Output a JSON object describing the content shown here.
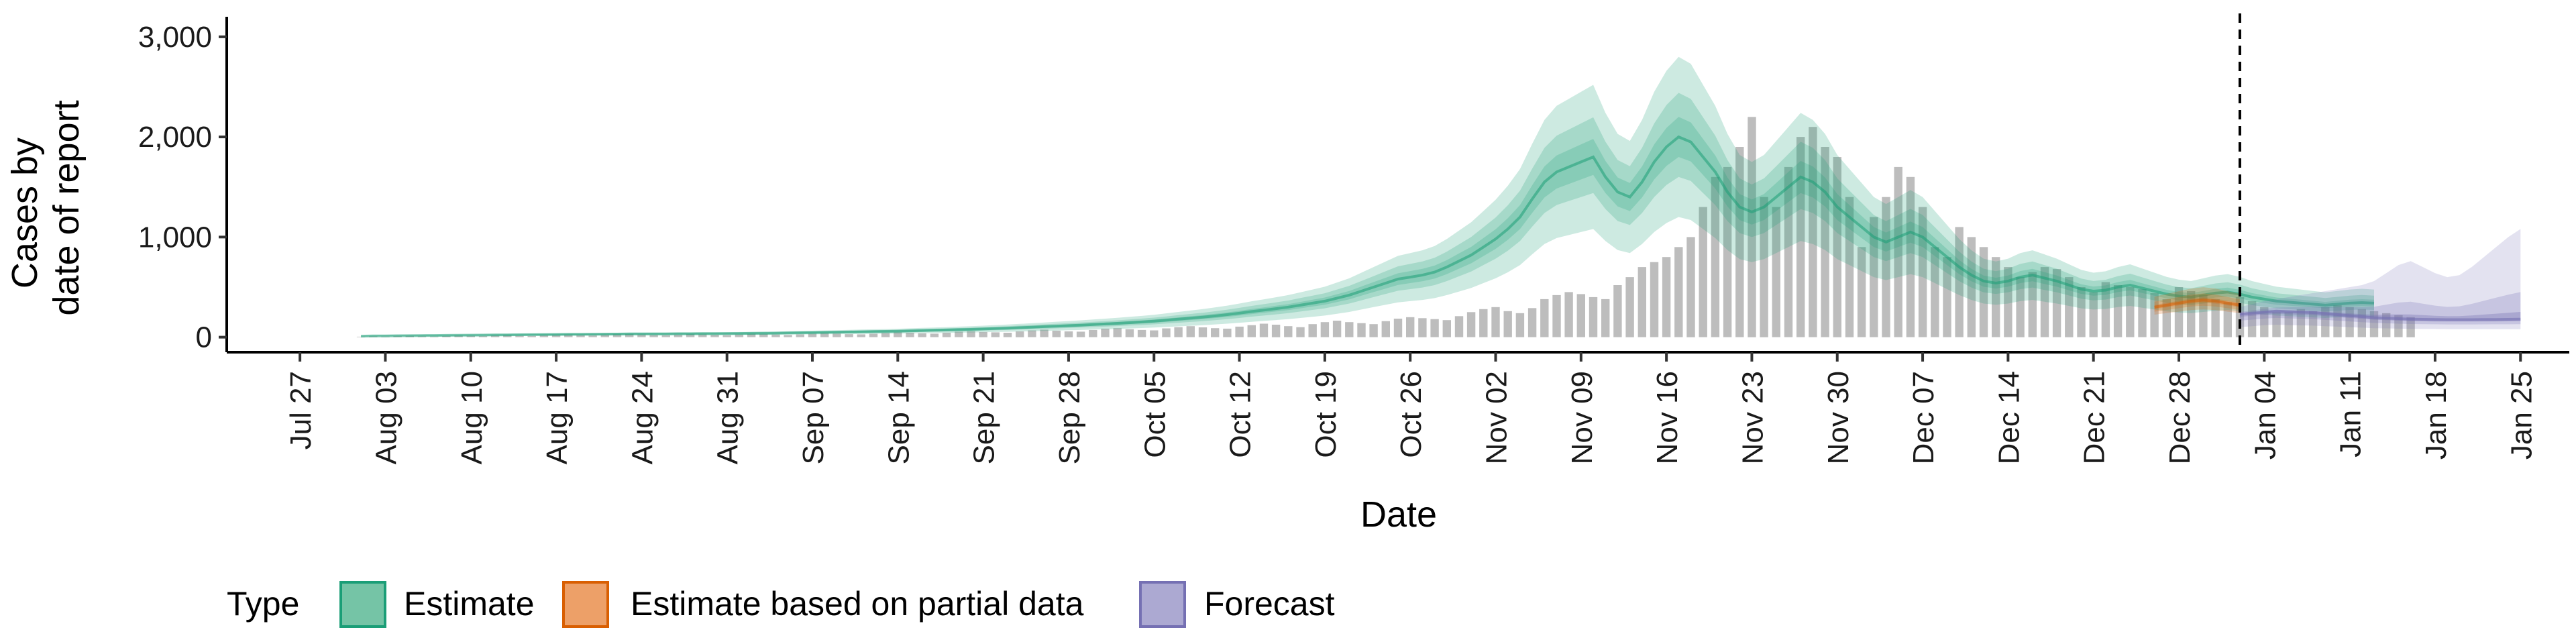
{
  "chart_data": {
    "type": "bar",
    "title": "",
    "xlabel": "Date",
    "ylabel": [
      "Cases by",
      "date of report"
    ],
    "ylim": [
      -150,
      3200
    ],
    "xlim": [
      "2020-07-21",
      "2021-01-29"
    ],
    "y_ticks": [
      0,
      1000,
      2000,
      3000
    ],
    "y_tick_labels": [
      "0",
      "1,000",
      "2,000",
      "3,000"
    ],
    "x_ticks": [
      "2020-07-27",
      "2020-08-03",
      "2020-08-10",
      "2020-08-17",
      "2020-08-24",
      "2020-08-31",
      "2020-09-07",
      "2020-09-14",
      "2020-09-21",
      "2020-09-28",
      "2020-10-05",
      "2020-10-12",
      "2020-10-19",
      "2020-10-26",
      "2020-11-02",
      "2020-11-09",
      "2020-11-16",
      "2020-11-23",
      "2020-11-30",
      "2020-12-07",
      "2020-12-14",
      "2020-12-21",
      "2020-12-28",
      "2021-01-04",
      "2021-01-11",
      "2021-01-18",
      "2021-01-25"
    ],
    "x_tick_labels": [
      "Jul 27",
      "Aug 03",
      "Aug 10",
      "Aug 17",
      "Aug 24",
      "Aug 31",
      "Sep 07",
      "Sep 14",
      "Sep 21",
      "Sep 28",
      "Oct 05",
      "Oct 12",
      "Oct 19",
      "Oct 26",
      "Nov 02",
      "Nov 09",
      "Nov 16",
      "Nov 23",
      "Nov 30",
      "Dec 07",
      "Dec 14",
      "Dec 21",
      "Dec 28",
      "Jan 04",
      "Jan 11",
      "Jan 18",
      "Jan 25"
    ],
    "vline_date": "2021-01-02",
    "grid": false,
    "legend": {
      "title": "Type",
      "position": "bottom",
      "entries": [
        {
          "label": "Estimate",
          "fill": "#75c4a6",
          "stroke": "#1b9e77"
        },
        {
          "label": "Estimate based on partial data",
          "fill": "#eda068",
          "stroke": "#d95f02"
        },
        {
          "label": "Forecast",
          "fill": "#aca9d2",
          "stroke": "#7570b3"
        }
      ]
    },
    "colors": {
      "bars": "#bdbdbd",
      "estimate": "#1b9e77",
      "partial": "#d95f02",
      "forecast": "#7570b3"
    },
    "bars": {
      "start": "2020-08-01",
      "values": [
        5,
        8,
        6,
        10,
        12,
        9,
        7,
        11,
        15,
        13,
        10,
        16,
        20,
        14,
        12,
        18,
        22,
        25,
        20,
        17,
        24,
        28,
        30,
        26,
        22,
        19,
        25,
        30,
        28,
        24,
        20,
        27,
        33,
        30,
        26,
        22,
        28,
        35,
        40,
        36,
        30,
        28,
        34,
        42,
        48,
        44,
        38,
        35,
        45,
        55,
        60,
        52,
        48,
        44,
        58,
        68,
        75,
        65,
        58,
        55,
        72,
        85,
        90,
        80,
        72,
        68,
        88,
        100,
        110,
        98,
        90,
        85,
        105,
        120,
        135,
        125,
        110,
        100,
        130,
        150,
        165,
        150,
        140,
        130,
        160,
        185,
        200,
        190,
        180,
        170,
        210,
        250,
        280,
        300,
        260,
        240,
        290,
        380,
        420,
        450,
        430,
        400,
        380,
        520,
        600,
        700,
        750,
        800,
        900,
        1000,
        1300,
        1600,
        1700,
        1900,
        2200,
        1400,
        1300,
        1700,
        2000,
        2100,
        1900,
        1800,
        1400,
        900,
        1200,
        1400,
        1700,
        1600,
        1300,
        900,
        800,
        1100,
        1000,
        900,
        800,
        700,
        600,
        650,
        700,
        680,
        600,
        500,
        450,
        550,
        520,
        500,
        480,
        440,
        380,
        500,
        460,
        420,
        380,
        350,
        400,
        360,
        300,
        250,
        250,
        280,
        260,
        300,
        320,
        300,
        280,
        260,
        240,
        220,
        200
      ]
    },
    "estimate": {
      "start": "2020-08-01",
      "median": [
        10,
        12,
        13,
        14,
        15,
        16,
        17,
        18,
        19,
        20,
        21,
        22,
        23,
        24,
        25,
        26,
        27,
        28,
        28,
        29,
        30,
        31,
        32,
        32,
        33,
        33,
        34,
        34,
        35,
        35,
        36,
        37,
        38,
        39,
        40,
        42,
        44,
        46,
        48,
        50,
        52,
        54,
        56,
        58,
        60,
        63,
        66,
        69,
        72,
        75,
        78,
        82,
        86,
        90,
        95,
        100,
        105,
        110,
        115,
        120,
        126,
        132,
        138,
        145,
        152,
        160,
        170,
        180,
        190,
        200,
        212,
        225,
        240,
        256,
        270,
        285,
        300,
        320,
        340,
        360,
        390,
        420,
        460,
        500,
        540,
        580,
        600,
        620,
        650,
        700,
        760,
        820,
        900,
        980,
        1080,
        1200,
        1380,
        1550,
        1650,
        1700,
        1750,
        1800,
        1600,
        1450,
        1400,
        1550,
        1750,
        1900,
        2000,
        1950,
        1800,
        1650,
        1450,
        1300,
        1250,
        1300,
        1400,
        1500,
        1600,
        1550,
        1450,
        1300,
        1200,
        1100,
        1000,
        950,
        1000,
        1050,
        1000,
        900,
        800,
        700,
        620,
        560,
        540,
        560,
        600,
        620,
        590,
        560,
        520,
        480,
        460,
        470,
        500,
        520,
        490,
        460,
        430,
        410,
        400,
        420,
        440,
        450,
        430,
        400,
        380,
        360,
        350,
        340,
        330,
        320,
        330,
        340,
        345,
        340
      ],
      "bands": [
        [
          0.6,
          1.4
        ],
        [
          0.8,
          1.22
        ],
        [
          0.9,
          1.1
        ]
      ]
    },
    "partial": {
      "start": "2020-12-26",
      "median": [
        300,
        320,
        340,
        360,
        370,
        360,
        340,
        320
      ],
      "bands": [
        [
          0.75,
          1.35
        ],
        [
          0.85,
          1.18
        ],
        [
          0.93,
          1.07
        ]
      ]
    },
    "forecast": {
      "start": "2021-01-02",
      "median": [
        230,
        240,
        250,
        260,
        255,
        250,
        245,
        235,
        225,
        215,
        205,
        195,
        190,
        185,
        180,
        178,
        176,
        175,
        175,
        175,
        176,
        177,
        178,
        180
      ],
      "lower": [
        100,
        110,
        120,
        125,
        120,
        118,
        115,
        110,
        105,
        100,
        95,
        90,
        88,
        85,
        83,
        82,
        81,
        80,
        80,
        80,
        80,
        80,
        80,
        80
      ],
      "upper": [
        300,
        330,
        360,
        380,
        400,
        420,
        440,
        460,
        480,
        500,
        520,
        560,
        640,
        720,
        760,
        700,
        640,
        600,
        620,
        700,
        800,
        900,
        1000,
        1080
      ]
    }
  }
}
